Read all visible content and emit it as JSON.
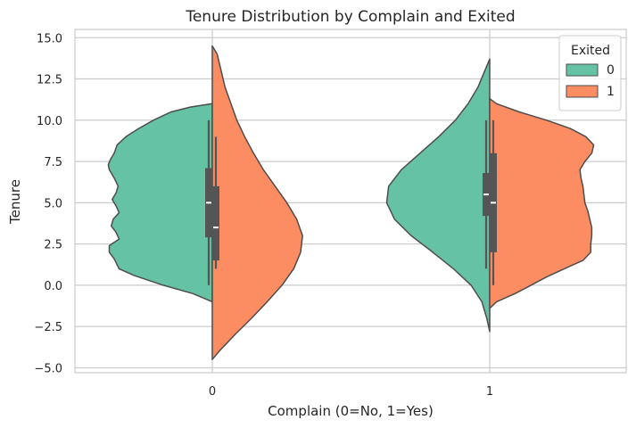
{
  "chart_data": {
    "type": "violin",
    "title": "Tenure Distribution by Complain and Exited",
    "xlabel": "Complain (0=No, 1=Yes)",
    "ylabel": "Tenure",
    "categories": [
      "0",
      "1"
    ],
    "ylim": [
      -5.3,
      15.5
    ],
    "yticks": [
      -5.0,
      -2.5,
      0.0,
      2.5,
      5.0,
      7.5,
      10.0,
      12.5,
      15.0
    ],
    "ytick_labels": [
      "−5.0",
      "−2.5",
      "0.0",
      "2.5",
      "5.0",
      "7.5",
      "10.0",
      "12.5",
      "15.0"
    ],
    "grid": true,
    "legend": {
      "title": "Exited",
      "position": "top-right",
      "entries": [
        "0",
        "1"
      ]
    },
    "colors": {
      "0": "#66c2a5",
      "1": "#fc8d62",
      "outline": "#4d4d4d"
    },
    "violins": [
      {
        "category": "0",
        "hue": "0",
        "side": "left",
        "profile": [
          [
            -1.0,
            0.0
          ],
          [
            -0.5,
            0.2
          ],
          [
            0.0,
            0.5
          ],
          [
            0.6,
            0.8
          ],
          [
            1.0,
            0.95
          ],
          [
            1.6,
            1.0
          ],
          [
            2.0,
            1.05
          ],
          [
            2.4,
            1.05
          ],
          [
            2.8,
            0.95
          ],
          [
            3.2,
            0.98
          ],
          [
            3.6,
            1.03
          ],
          [
            4.0,
            1.01
          ],
          [
            4.4,
            0.95
          ],
          [
            4.8,
            0.98
          ],
          [
            5.2,
            1.02
          ],
          [
            5.6,
            0.98
          ],
          [
            6.0,
            0.96
          ],
          [
            6.5,
            1.0
          ],
          [
            7.0,
            1.05
          ],
          [
            7.3,
            1.06
          ],
          [
            7.6,
            1.04
          ],
          [
            8.0,
            1.0
          ],
          [
            8.5,
            0.97
          ],
          [
            9.0,
            0.88
          ],
          [
            9.5,
            0.75
          ],
          [
            10.0,
            0.6
          ],
          [
            10.5,
            0.42
          ],
          [
            10.8,
            0.22
          ],
          [
            11.0,
            0.0
          ]
        ],
        "box": {
          "q1": 2.9,
          "median": 5.0,
          "q3": 7.1,
          "whisker_low": 0.0,
          "whisker_high": 10.0
        }
      },
      {
        "category": "0",
        "hue": "1",
        "side": "right",
        "profile": [
          [
            -4.5,
            0.0
          ],
          [
            -4.0,
            0.07
          ],
          [
            -3.0,
            0.23
          ],
          [
            -2.0,
            0.4
          ],
          [
            -1.0,
            0.56
          ],
          [
            0.0,
            0.71
          ],
          [
            1.0,
            0.83
          ],
          [
            2.0,
            0.9
          ],
          [
            3.0,
            0.92
          ],
          [
            4.0,
            0.86
          ],
          [
            5.0,
            0.76
          ],
          [
            6.0,
            0.64
          ],
          [
            7.0,
            0.52
          ],
          [
            8.0,
            0.42
          ],
          [
            9.0,
            0.33
          ],
          [
            10.0,
            0.25
          ],
          [
            11.0,
            0.19
          ],
          [
            12.0,
            0.13
          ],
          [
            13.0,
            0.09
          ],
          [
            14.0,
            0.05
          ],
          [
            14.5,
            0.0
          ]
        ],
        "box": {
          "q1": 1.5,
          "median": 3.5,
          "q3": 6.0,
          "whisker_low": 1.0,
          "whisker_high": 9.0
        }
      },
      {
        "category": "1",
        "hue": "0",
        "side": "left",
        "profile": [
          [
            -2.8,
            0.0
          ],
          [
            -2.0,
            0.03
          ],
          [
            -1.0,
            0.08
          ],
          [
            0.0,
            0.19
          ],
          [
            1.0,
            0.37
          ],
          [
            2.0,
            0.58
          ],
          [
            3.0,
            0.8
          ],
          [
            4.0,
            0.97
          ],
          [
            5.0,
            1.05
          ],
          [
            6.0,
            1.03
          ],
          [
            7.0,
            0.9
          ],
          [
            8.0,
            0.71
          ],
          [
            9.0,
            0.52
          ],
          [
            10.0,
            0.35
          ],
          [
            11.0,
            0.22
          ],
          [
            12.0,
            0.12
          ],
          [
            13.0,
            0.05
          ],
          [
            13.7,
            0.0
          ]
        ],
        "box": {
          "q1": 4.2,
          "median": 5.5,
          "q3": 6.8,
          "whisker_low": 1.0,
          "whisker_high": 10.0
        }
      },
      {
        "category": "1",
        "hue": "1",
        "side": "right",
        "profile": [
          [
            -1.4,
            0.0
          ],
          [
            -1.0,
            0.07
          ],
          [
            -0.5,
            0.26
          ],
          [
            0.0,
            0.42
          ],
          [
            0.5,
            0.58
          ],
          [
            1.0,
            0.76
          ],
          [
            1.5,
            0.95
          ],
          [
            2.0,
            1.03
          ],
          [
            2.5,
            1.03
          ],
          [
            3.0,
            1.04
          ],
          [
            3.5,
            1.04
          ],
          [
            4.0,
            1.02
          ],
          [
            4.5,
            1.0
          ],
          [
            5.0,
            0.97
          ],
          [
            5.5,
            0.96
          ],
          [
            6.0,
            0.95
          ],
          [
            6.5,
            0.93
          ],
          [
            7.0,
            0.92
          ],
          [
            7.5,
            0.97
          ],
          [
            8.0,
            1.04
          ],
          [
            8.5,
            1.06
          ],
          [
            9.0,
            0.98
          ],
          [
            9.5,
            0.82
          ],
          [
            10.0,
            0.58
          ],
          [
            10.5,
            0.3
          ],
          [
            11.0,
            0.07
          ],
          [
            11.3,
            0.0
          ]
        ],
        "box": {
          "q1": 2.0,
          "median": 5.0,
          "q3": 8.0,
          "whisker_low": 0.0,
          "whisker_high": 10.0
        }
      }
    ]
  }
}
